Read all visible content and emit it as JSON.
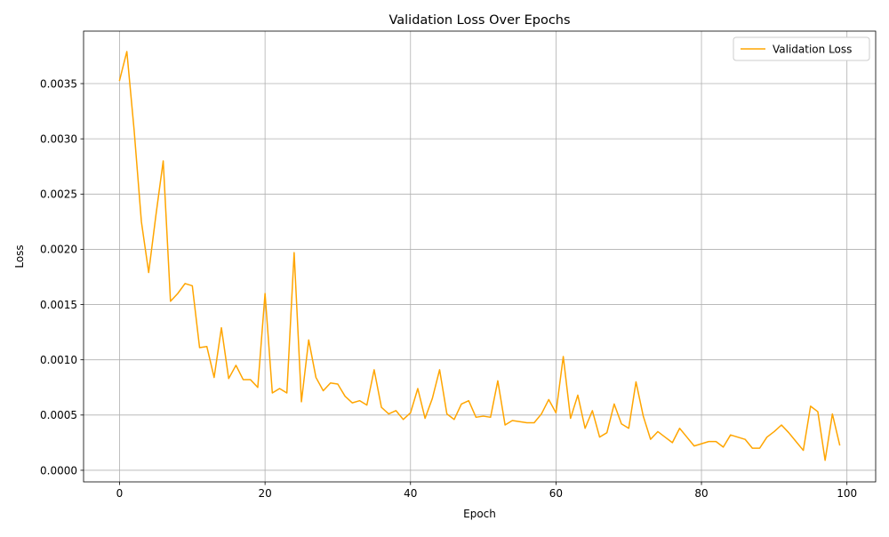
{
  "chart_data": {
    "type": "line",
    "title": "Validation Loss Over Epochs",
    "xlabel": "Epoch",
    "ylabel": "Loss",
    "xlim": [
      -4.95,
      103.95
    ],
    "ylim": [
      -0.000105,
      0.003975
    ],
    "x_ticks": [
      0,
      20,
      40,
      60,
      80,
      100
    ],
    "x_tick_labels": [
      "0",
      "20",
      "40",
      "60",
      "80",
      "100"
    ],
    "y_ticks": [
      0.0,
      0.0005,
      0.001,
      0.0015,
      0.002,
      0.0025,
      0.003,
      0.0035
    ],
    "y_tick_labels": [
      "0.0000",
      "0.0005",
      "0.0010",
      "0.0015",
      "0.0020",
      "0.0025",
      "0.0030",
      "0.0035"
    ],
    "grid": true,
    "legend_position": "top-right",
    "series": [
      {
        "name": "Validation Loss",
        "color": "#FFA500",
        "x": [
          0,
          1,
          2,
          3,
          4,
          5,
          6,
          7,
          8,
          9,
          10,
          11,
          12,
          13,
          14,
          15,
          16,
          17,
          18,
          19,
          20,
          21,
          22,
          23,
          24,
          25,
          26,
          27,
          28,
          29,
          30,
          31,
          32,
          33,
          34,
          35,
          36,
          37,
          38,
          39,
          40,
          41,
          42,
          43,
          44,
          45,
          46,
          47,
          48,
          49,
          50,
          51,
          52,
          53,
          54,
          55,
          56,
          57,
          58,
          59,
          60,
          61,
          62,
          63,
          64,
          65,
          66,
          67,
          68,
          69,
          70,
          71,
          72,
          73,
          74,
          75,
          76,
          77,
          78,
          79,
          80,
          81,
          82,
          83,
          84,
          85,
          86,
          87,
          88,
          89,
          90,
          91,
          92,
          93,
          94,
          95,
          96,
          97,
          98,
          99
        ],
        "values": [
          0.00353,
          0.00379,
          0.00308,
          0.00225,
          0.00179,
          0.00231,
          0.0028,
          0.00153,
          0.0016,
          0.00169,
          0.00167,
          0.00111,
          0.00112,
          0.00084,
          0.00129,
          0.00083,
          0.00095,
          0.00082,
          0.00082,
          0.00075,
          0.0016,
          0.0007,
          0.00074,
          0.0007,
          0.00197,
          0.00062,
          0.00118,
          0.00084,
          0.00072,
          0.00079,
          0.00078,
          0.00067,
          0.00061,
          0.00063,
          0.00059,
          0.00091,
          0.00057,
          0.00051,
          0.00054,
          0.00046,
          0.00052,
          0.00074,
          0.00047,
          0.00065,
          0.00091,
          0.00051,
          0.00046,
          0.0006,
          0.00063,
          0.00048,
          0.00049,
          0.00048,
          0.00081,
          0.00041,
          0.00045,
          0.00044,
          0.00043,
          0.00043,
          0.00051,
          0.00064,
          0.00052,
          0.00103,
          0.00047,
          0.00068,
          0.00038,
          0.00054,
          0.0003,
          0.00034,
          0.0006,
          0.00042,
          0.00038,
          0.0008,
          0.00049,
          0.00028,
          0.00035,
          0.0003,
          0.00025,
          0.00038,
          0.0003,
          0.00022,
          0.00024,
          0.00026,
          0.00026,
          0.00021,
          0.00032,
          0.0003,
          0.00028,
          0.0002,
          0.0002,
          0.0003,
          0.00035,
          0.00041,
          0.00034,
          0.00026,
          0.00018,
          0.00058,
          0.00053,
          9e-05,
          0.00051,
          0.00023
        ]
      }
    ]
  }
}
